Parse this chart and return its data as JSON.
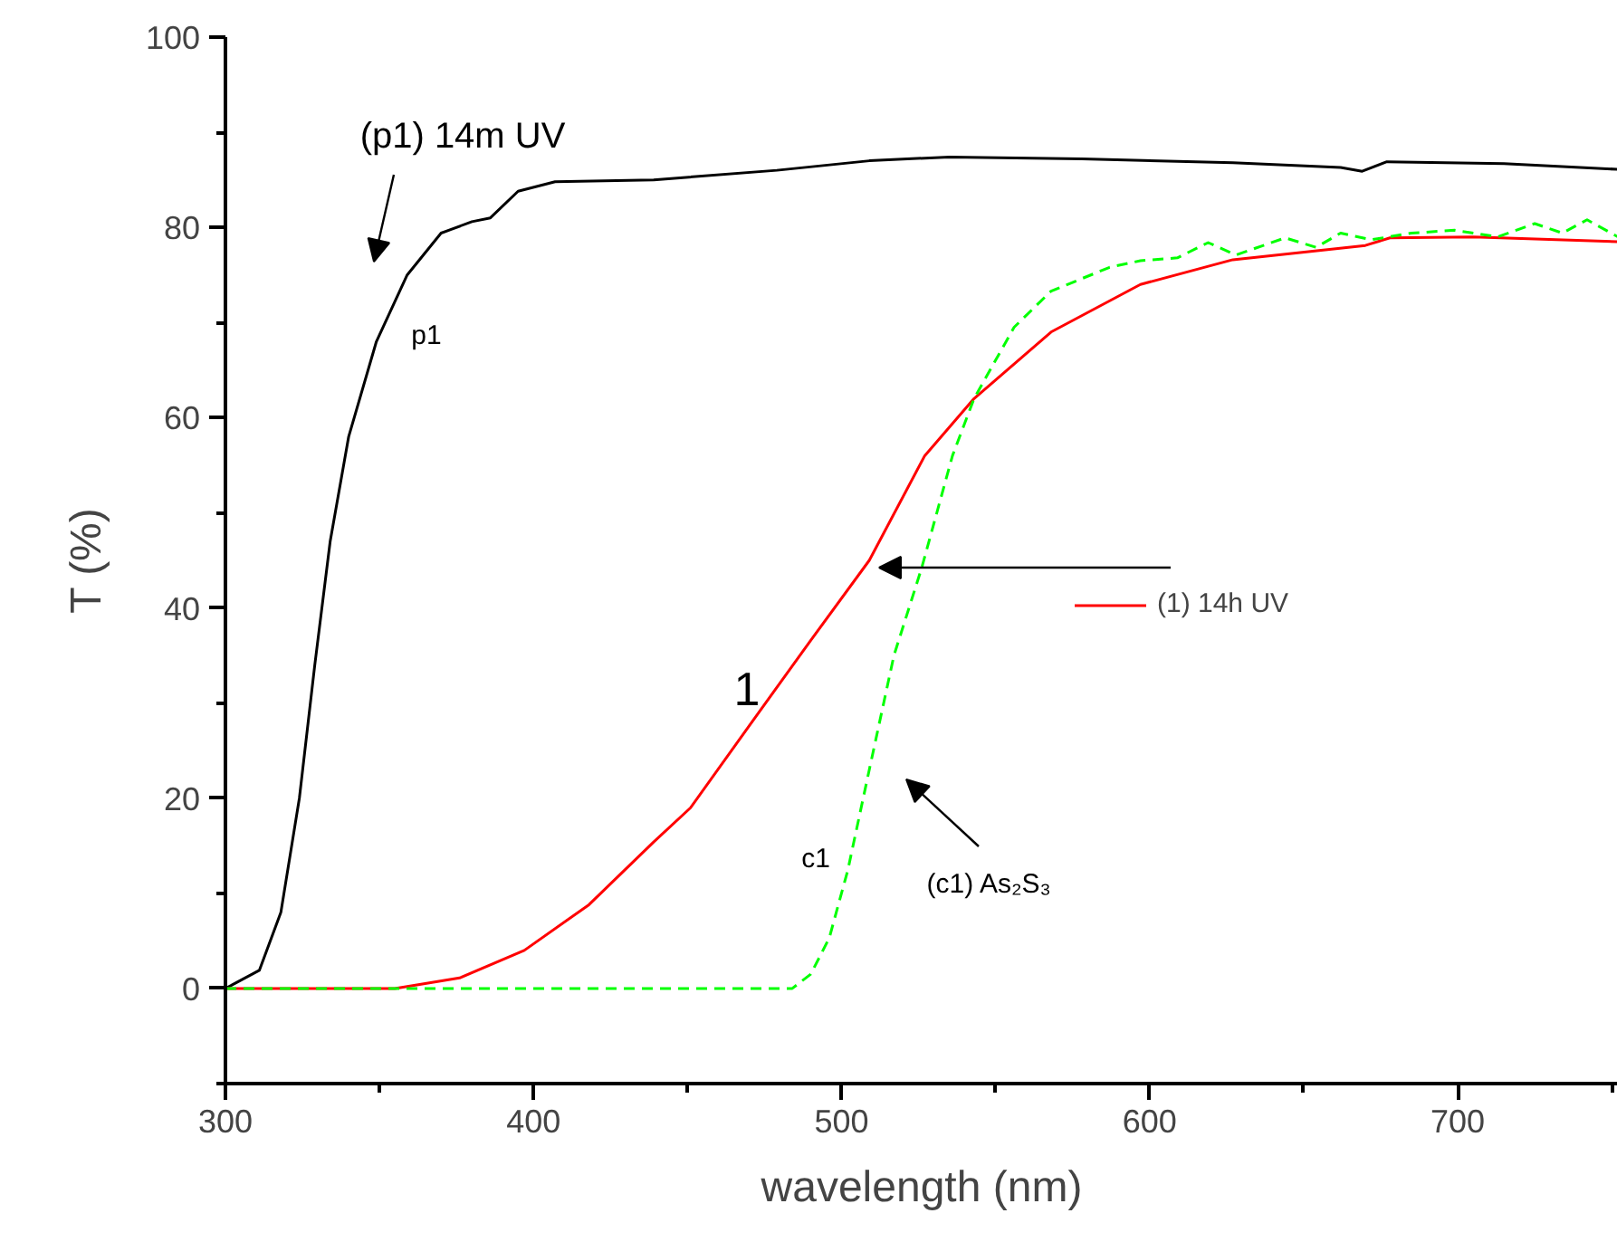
{
  "chart_data": {
    "type": "line",
    "xlabel": "wavelength (nm)",
    "ylabel": "T (%)",
    "xlim": [
      300,
      752
    ],
    "ylim": [
      -10,
      100
    ],
    "xticks": [
      300,
      {
        "value": 350,
        "label": null
      },
      400,
      {
        "value": 450,
        "label": null
      },
      500,
      {
        "value": 550,
        "label": null
      },
      600,
      {
        "value": 650,
        "label": null
      },
      700,
      {
        "value": 750,
        "label": null
      }
    ],
    "yticks": [
      {
        "value": -10,
        "label": null
      },
      0,
      {
        "value": 10,
        "label": null
      },
      20,
      {
        "value": 30,
        "label": null
      },
      40,
      {
        "value": 50,
        "label": null
      },
      60,
      {
        "value": 70,
        "label": null
      },
      80,
      {
        "value": 90,
        "label": null
      },
      100
    ],
    "grid": false,
    "legend": "right",
    "marker": "none",
    "series": [
      {
        "color": "#000000",
        "line_style": "solid",
        "x": [
          300,
          311,
          318,
          324,
          329,
          334,
          340,
          349,
          359,
          370,
          380,
          386,
          395,
          407,
          439,
          479,
          509,
          535,
          578,
          627,
          662,
          669,
          677,
          715,
          752
        ],
        "values": [
          0,
          1.9,
          8,
          20,
          34,
          47,
          58,
          68,
          75,
          79.4,
          80.6,
          81,
          83.8,
          84.8,
          85,
          86,
          87,
          87.4,
          87.2,
          86.8,
          86.3,
          85.9,
          86.9,
          86.7,
          86.1
        ]
      },
      {
        "name": "(1) 14h UV",
        "color": "#ff0000",
        "line_style": "solid",
        "x": [
          300,
          355,
          376,
          397,
          418,
          439,
          451,
          470,
          490,
          509,
          527,
          543,
          568,
          597,
          627,
          670,
          678,
          705,
          752
        ],
        "values": [
          0,
          0,
          1.1,
          4,
          8.8,
          15.4,
          19,
          27.6,
          36.6,
          45,
          56,
          62,
          69,
          74,
          76.6,
          78.1,
          78.9,
          79,
          78.5
        ]
      },
      {
        "color": "#00ff00",
        "line_style": "dashed",
        "x": [
          300,
          484,
          490,
          496,
          502,
          509,
          517,
          526,
          536,
          543,
          556,
          568,
          587,
          597,
          609,
          619,
          628,
          644,
          654,
          662,
          672,
          685,
          699,
          713,
          725,
          734,
          742,
          752
        ],
        "values": [
          0,
          0,
          1.5,
          5.3,
          12.4,
          23,
          35,
          44.2,
          56,
          62,
          69.5,
          73.3,
          75.8,
          76.5,
          76.8,
          78.4,
          77.1,
          78.9,
          77.9,
          79.4,
          78.7,
          79.4,
          79.7,
          79,
          80.4,
          79.4,
          80.8,
          79
        ]
      }
    ],
    "annotations": [
      "(p1) 14m UV",
      "p1",
      "1",
      "c1",
      "(c1) As₂S₃"
    ]
  }
}
